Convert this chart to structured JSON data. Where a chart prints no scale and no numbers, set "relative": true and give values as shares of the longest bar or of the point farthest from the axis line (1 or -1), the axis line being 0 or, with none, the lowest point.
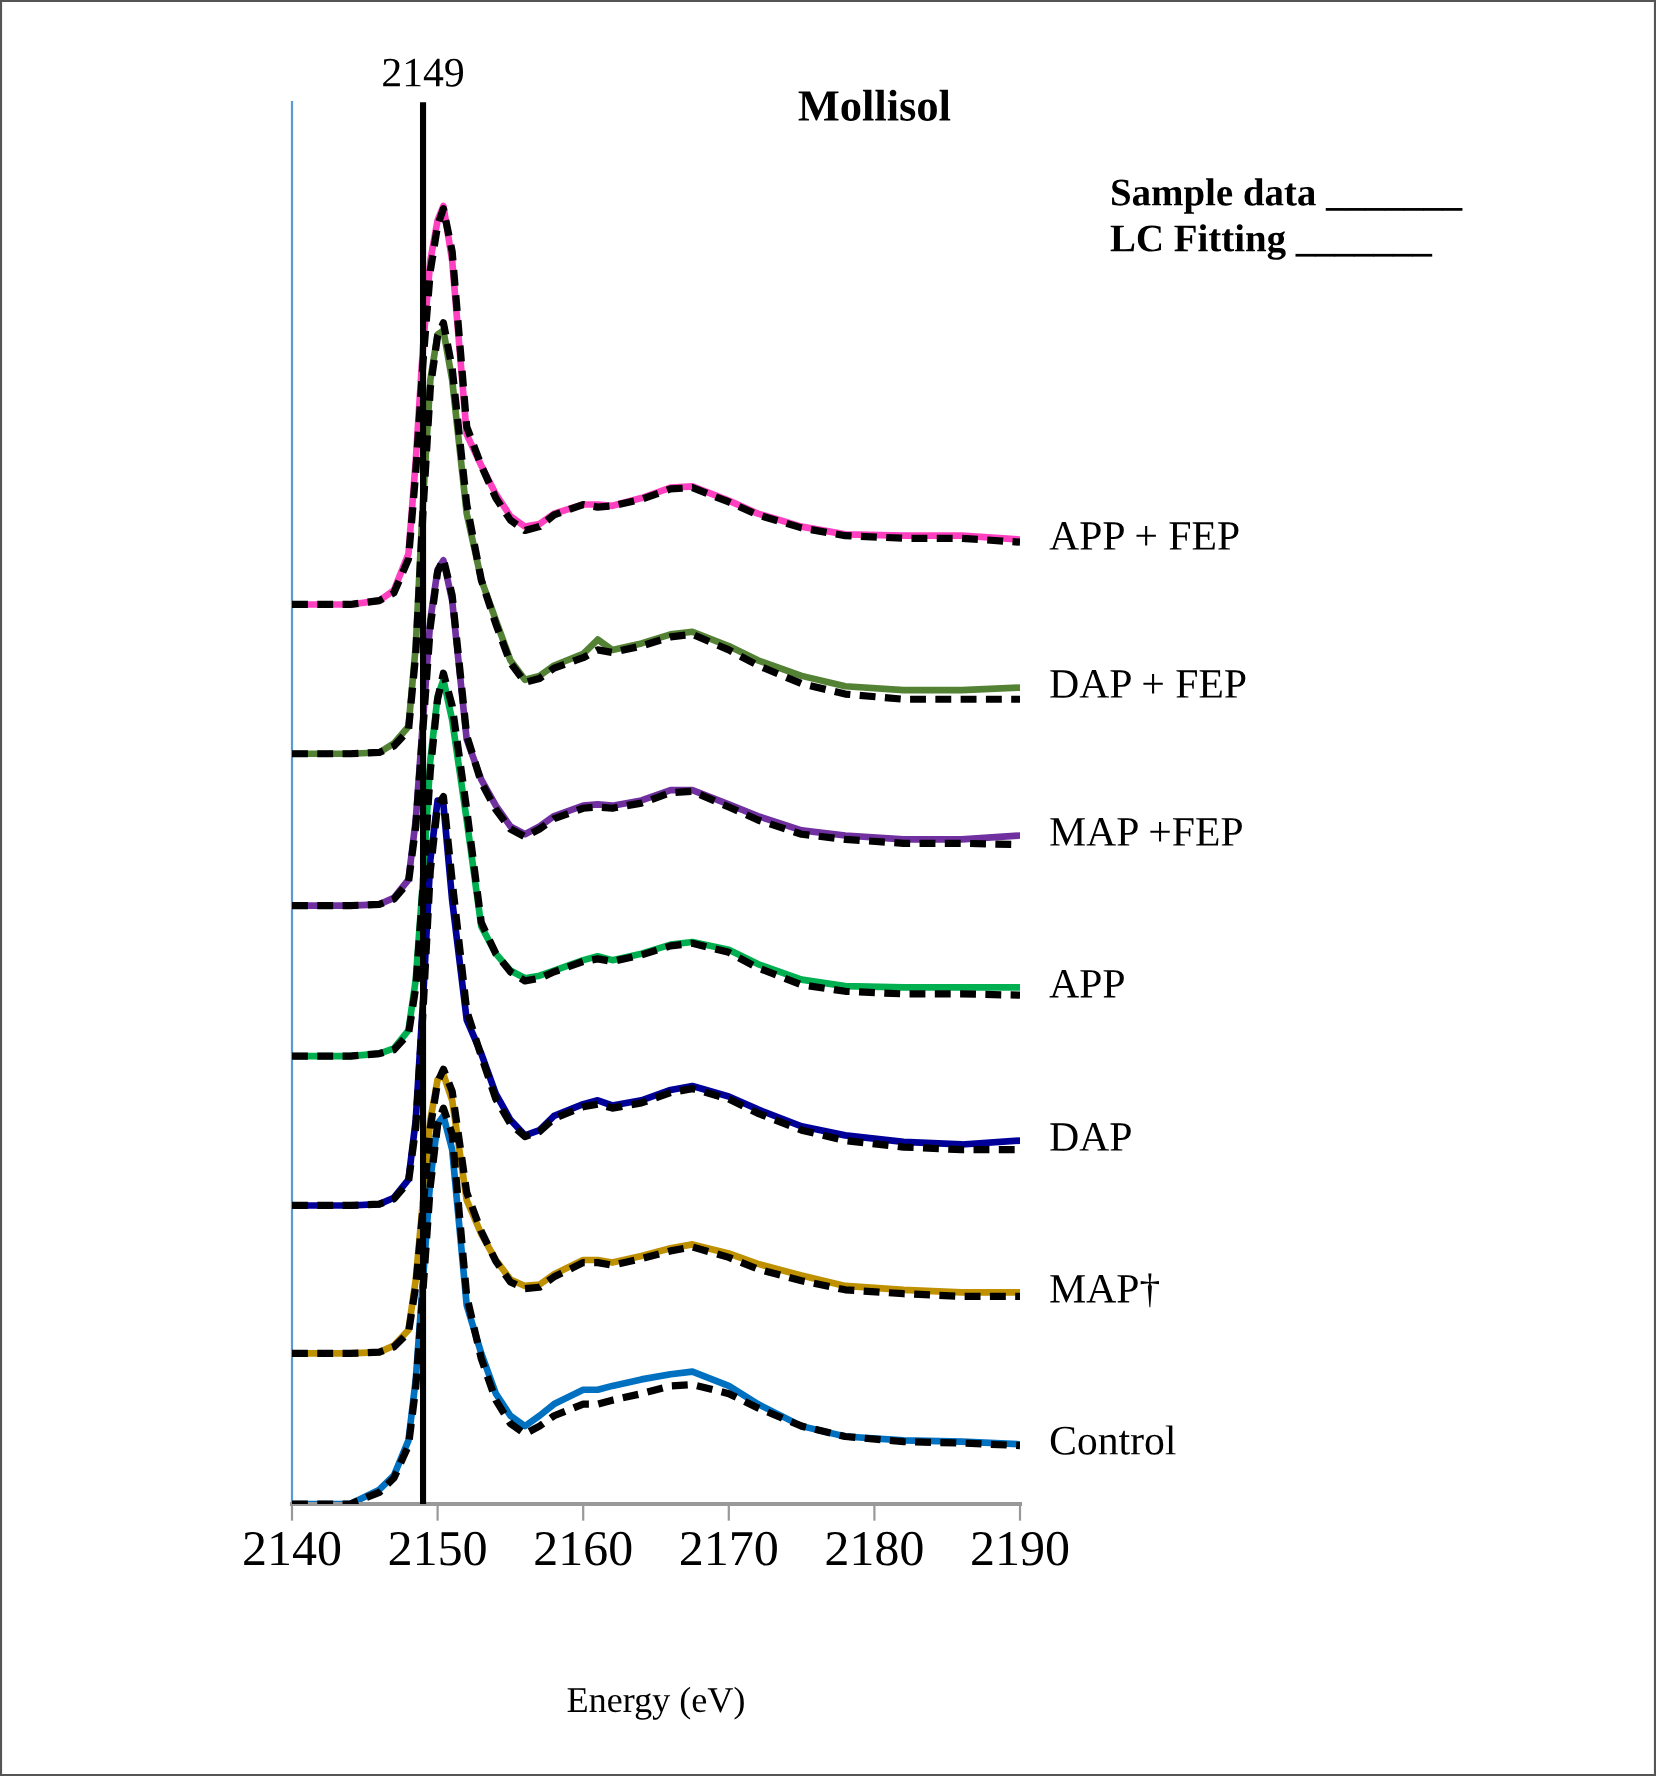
{
  "chart_data": {
    "type": "line",
    "title": "Mollisol",
    "xlabel": "Energy (eV)",
    "relative": true,
    "x": [
      2140,
      2144,
      2146,
      2147,
      2148,
      2148.5,
      2149,
      2149.5,
      2150,
      2150.4,
      2151,
      2152,
      2153,
      2154,
      2155,
      2156,
      2157,
      2158,
      2160,
      2161,
      2162,
      2164,
      2166,
      2167.5,
      2170,
      2172,
      2175,
      2178,
      2182,
      2186,
      2190
    ],
    "xlim": [
      2140,
      2190
    ],
    "xticks": [
      2140,
      2150,
      2160,
      2170,
      2180,
      2190
    ],
    "grid": false,
    "legend": false,
    "marker": "none",
    "ref_lines": [
      {
        "axis": "x",
        "value": 2149,
        "label": "2149",
        "color": "#000000",
        "line_style": "solid"
      }
    ],
    "annotations": [
      "Sample data _______",
      "LC Fitting _______"
    ],
    "series": [
      {
        "name": "APP + FEP",
        "color": "#ff40c0",
        "line_style": "solid",
        "values": [
          0.693,
          0.693,
          0.696,
          0.704,
          0.732,
          0.804,
          0.892,
          0.958,
          0.989,
          1,
          0.958,
          0.824,
          0.8,
          0.778,
          0.761,
          0.753,
          0.755,
          0.763,
          0.77,
          0.77,
          0.769,
          0.775,
          0.783,
          0.784,
          0.773,
          0.763,
          0.753,
          0.747,
          0.746,
          0.746,
          0.743
        ]
      },
      {
        "color": "#000000",
        "line_style": "dashed",
        "values": [
          0.693,
          0.693,
          0.696,
          0.702,
          0.728,
          0.795,
          0.88,
          0.95,
          0.985,
          0.998,
          0.965,
          0.83,
          0.8,
          0.775,
          0.758,
          0.75,
          0.753,
          0.762,
          0.77,
          0.768,
          0.769,
          0.774,
          0.782,
          0.783,
          0.772,
          0.762,
          0.752,
          0.746,
          0.744,
          0.744,
          0.741
        ]
      },
      {
        "name": "DAP + FEP",
        "color": "#548235",
        "line_style": "solid",
        "values": [
          0.578,
          0.578,
          0.579,
          0.586,
          0.599,
          0.661,
          0.773,
          0.866,
          0.901,
          0.904,
          0.866,
          0.763,
          0.712,
          0.681,
          0.65,
          0.635,
          0.638,
          0.646,
          0.655,
          0.666,
          0.658,
          0.663,
          0.67,
          0.672,
          0.661,
          0.65,
          0.638,
          0.63,
          0.627,
          0.627,
          0.629
        ]
      },
      {
        "color": "#000000",
        "line_style": "dashed",
        "values": [
          0.578,
          0.578,
          0.579,
          0.584,
          0.596,
          0.655,
          0.765,
          0.86,
          0.9,
          0.91,
          0.875,
          0.77,
          0.712,
          0.678,
          0.648,
          0.633,
          0.636,
          0.644,
          0.652,
          0.658,
          0.656,
          0.661,
          0.668,
          0.67,
          0.658,
          0.646,
          0.632,
          0.624,
          0.62,
          0.62,
          0.62
        ]
      },
      {
        "name": "MAP +FEP",
        "color": "#7030a0",
        "line_style": "solid",
        "values": [
          0.461,
          0.461,
          0.462,
          0.467,
          0.481,
          0.527,
          0.604,
          0.681,
          0.72,
          0.727,
          0.696,
          0.589,
          0.558,
          0.538,
          0.522,
          0.516,
          0.522,
          0.53,
          0.538,
          0.539,
          0.538,
          0.542,
          0.55,
          0.55,
          0.539,
          0.53,
          0.519,
          0.515,
          0.512,
          0.512,
          0.515
        ]
      },
      {
        "color": "#000000",
        "line_style": "dashed",
        "values": [
          0.461,
          0.461,
          0.462,
          0.466,
          0.479,
          0.522,
          0.598,
          0.676,
          0.718,
          0.728,
          0.7,
          0.592,
          0.556,
          0.535,
          0.52,
          0.514,
          0.52,
          0.528,
          0.536,
          0.537,
          0.536,
          0.54,
          0.548,
          0.549,
          0.537,
          0.527,
          0.516,
          0.512,
          0.509,
          0.509,
          0.508
        ]
      },
      {
        "name": "APP",
        "color": "#00b050",
        "line_style": "solid",
        "values": [
          0.345,
          0.345,
          0.347,
          0.351,
          0.365,
          0.404,
          0.481,
          0.573,
          0.622,
          0.635,
          0.604,
          0.527,
          0.445,
          0.424,
          0.411,
          0.405,
          0.407,
          0.411,
          0.419,
          0.422,
          0.419,
          0.424,
          0.431,
          0.433,
          0.427,
          0.416,
          0.404,
          0.399,
          0.398,
          0.398,
          0.398
        ]
      },
      {
        "color": "#000000",
        "line_style": "dashed",
        "values": [
          0.345,
          0.345,
          0.347,
          0.35,
          0.362,
          0.398,
          0.475,
          0.565,
          0.62,
          0.64,
          0.615,
          0.535,
          0.448,
          0.424,
          0.41,
          0.403,
          0.405,
          0.41,
          0.418,
          0.42,
          0.418,
          0.423,
          0.43,
          0.432,
          0.425,
          0.413,
          0.4,
          0.395,
          0.393,
          0.393,
          0.392
        ]
      },
      {
        "name": "DAP",
        "color": "#000099",
        "line_style": "solid",
        "values": [
          0.23,
          0.23,
          0.231,
          0.236,
          0.25,
          0.296,
          0.388,
          0.496,
          0.542,
          0.539,
          0.465,
          0.373,
          0.347,
          0.316,
          0.296,
          0.284,
          0.288,
          0.299,
          0.308,
          0.311,
          0.307,
          0.311,
          0.319,
          0.322,
          0.314,
          0.304,
          0.291,
          0.284,
          0.279,
          0.277,
          0.28
        ]
      },
      {
        "color": "#000000",
        "line_style": "dashed",
        "values": [
          0.23,
          0.23,
          0.231,
          0.235,
          0.248,
          0.29,
          0.38,
          0.488,
          0.538,
          0.545,
          0.48,
          0.38,
          0.345,
          0.312,
          0.293,
          0.283,
          0.287,
          0.297,
          0.306,
          0.308,
          0.305,
          0.309,
          0.317,
          0.32,
          0.312,
          0.301,
          0.288,
          0.28,
          0.275,
          0.273,
          0.273
        ]
      },
      {
        "name": "MAP†",
        "color": "#bf9000",
        "line_style": "solid",
        "values": [
          0.116,
          0.116,
          0.117,
          0.122,
          0.134,
          0.173,
          0.234,
          0.296,
          0.327,
          0.331,
          0.311,
          0.234,
          0.208,
          0.188,
          0.173,
          0.168,
          0.169,
          0.177,
          0.188,
          0.188,
          0.186,
          0.191,
          0.197,
          0.2,
          0.193,
          0.185,
          0.176,
          0.168,
          0.165,
          0.163,
          0.163
        ]
      },
      {
        "color": "#000000",
        "line_style": "dashed",
        "values": [
          0.116,
          0.116,
          0.117,
          0.121,
          0.132,
          0.168,
          0.228,
          0.29,
          0.325,
          0.335,
          0.318,
          0.24,
          0.21,
          0.187,
          0.171,
          0.166,
          0.167,
          0.175,
          0.186,
          0.186,
          0.184,
          0.189,
          0.195,
          0.198,
          0.19,
          0.181,
          0.172,
          0.165,
          0.162,
          0.16,
          0.16
        ]
      },
      {
        "name": "Control",
        "color": "#0070c0",
        "line_style": "solid",
        "values": [
          0,
          0,
          0.011,
          0.022,
          0.049,
          0.096,
          0.173,
          0.25,
          0.293,
          0.299,
          0.273,
          0.153,
          0.116,
          0.085,
          0.068,
          0.06,
          0.068,
          0.077,
          0.088,
          0.088,
          0.091,
          0.096,
          0.1,
          0.102,
          0.091,
          0.077,
          0.06,
          0.052,
          0.049,
          0.048,
          0.046
        ]
      },
      {
        "color": "#000000",
        "line_style": "dashed",
        "values": [
          0,
          0,
          0.009,
          0.02,
          0.045,
          0.09,
          0.165,
          0.245,
          0.292,
          0.305,
          0.285,
          0.16,
          0.112,
          0.08,
          0.062,
          0.054,
          0.06,
          0.068,
          0.077,
          0.077,
          0.08,
          0.085,
          0.091,
          0.092,
          0.085,
          0.074,
          0.06,
          0.052,
          0.048,
          0.047,
          0.045
        ]
      }
    ]
  }
}
